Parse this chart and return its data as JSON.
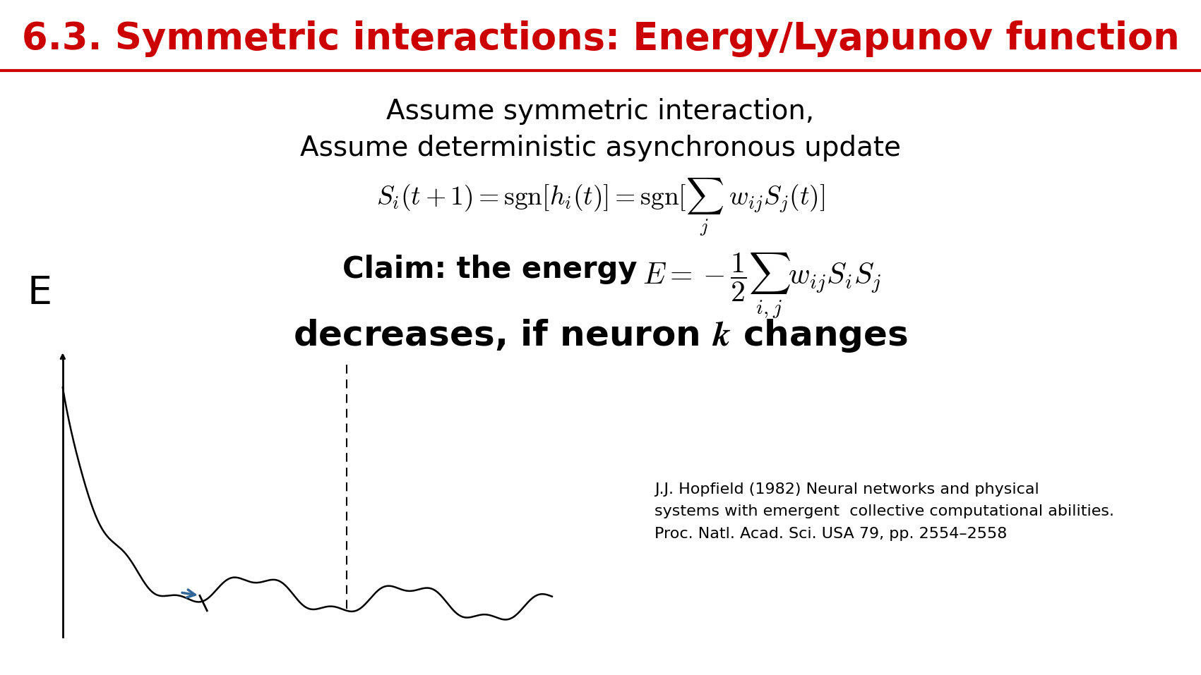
{
  "title": "6.3. Symmetric interactions: Energy/Lyapunov function",
  "title_color": "#cc0000",
  "title_fontsize": 38,
  "bg_color": "#ffffff",
  "line1": "Assume symmetric interaction,",
  "line2": "Assume deterministic asynchronous update",
  "text_fontsize": 28,
  "claim_bold": "Claim: the energy",
  "claim_fontsize": 30,
  "decreases_text": "decreases, if neuron ",
  "decreases_k": "k",
  "decreases_rest": " changes",
  "decreases_fontsize": 36,
  "E_label": "E",
  "E_fontsize": 40,
  "ref_text": "J.J. Hopfield (1982) Neural networks and physical\nsystems with emergent  collective computational abilities.\nProc. Natl. Acad. Sci. USA 79, pp. 2554–2558",
  "ref_fontsize": 16,
  "separator_color": "#cc0000",
  "arrow_color": "#336699",
  "curve_color": "#000000"
}
